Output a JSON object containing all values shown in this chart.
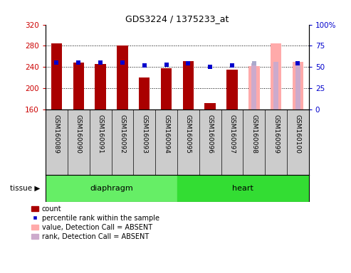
{
  "title": "GDS3224 / 1375233_at",
  "samples": [
    "GSM160089",
    "GSM160090",
    "GSM160091",
    "GSM160092",
    "GSM160093",
    "GSM160094",
    "GSM160095",
    "GSM160096",
    "GSM160097",
    "GSM160098",
    "GSM160099",
    "GSM160100"
  ],
  "count_values": [
    285,
    248,
    246,
    281,
    220,
    238,
    251,
    171,
    235,
    null,
    null,
    null
  ],
  "absent_value_values": [
    null,
    null,
    null,
    null,
    null,
    null,
    null,
    null,
    null,
    241,
    285,
    249
  ],
  "absent_rank_values": [
    null,
    null,
    null,
    null,
    null,
    null,
    null,
    null,
    null,
    247,
    250,
    246
  ],
  "percentile_rank_pct": [
    55,
    55,
    55,
    55,
    52,
    53,
    54,
    50,
    52,
    null,
    null,
    54
  ],
  "absent_percentile_rank_pct": [
    null,
    null,
    null,
    null,
    null,
    null,
    null,
    null,
    null,
    54,
    null,
    null
  ],
  "tissue_groups": [
    {
      "label": "diaphragm",
      "start": 0,
      "end": 6
    },
    {
      "label": "heart",
      "start": 6,
      "end": 12
    }
  ],
  "tissue_colors": [
    "#66ee66",
    "#33dd33"
  ],
  "ylim_left": [
    160,
    320
  ],
  "ylim_right": [
    0,
    100
  ],
  "yticks_left": [
    160,
    200,
    240,
    280,
    320
  ],
  "yticks_right": [
    0,
    25,
    50,
    75,
    100
  ],
  "ylabel_left_color": "#cc0000",
  "ylabel_right_color": "#0000cc",
  "bar_width": 0.5,
  "background_color": "#ffffff",
  "plot_bg_color": "#ffffff",
  "tick_label_area_color": "#cccccc",
  "absent_bar_color": "#ffaaaa",
  "absent_rank_color": "#ccaacc",
  "blue_marker_color": "#0000cc",
  "blue_absent_marker_color": "#aaaacc",
  "grid_lines": [
    200,
    240,
    280
  ],
  "legend_items": [
    {
      "color": "#aa0000",
      "type": "patch",
      "label": "count"
    },
    {
      "color": "#0000cc",
      "type": "square",
      "label": "percentile rank within the sample"
    },
    {
      "color": "#ffaaaa",
      "type": "patch",
      "label": "value, Detection Call = ABSENT"
    },
    {
      "color": "#ccaacc",
      "type": "patch",
      "label": "rank, Detection Call = ABSENT"
    }
  ]
}
